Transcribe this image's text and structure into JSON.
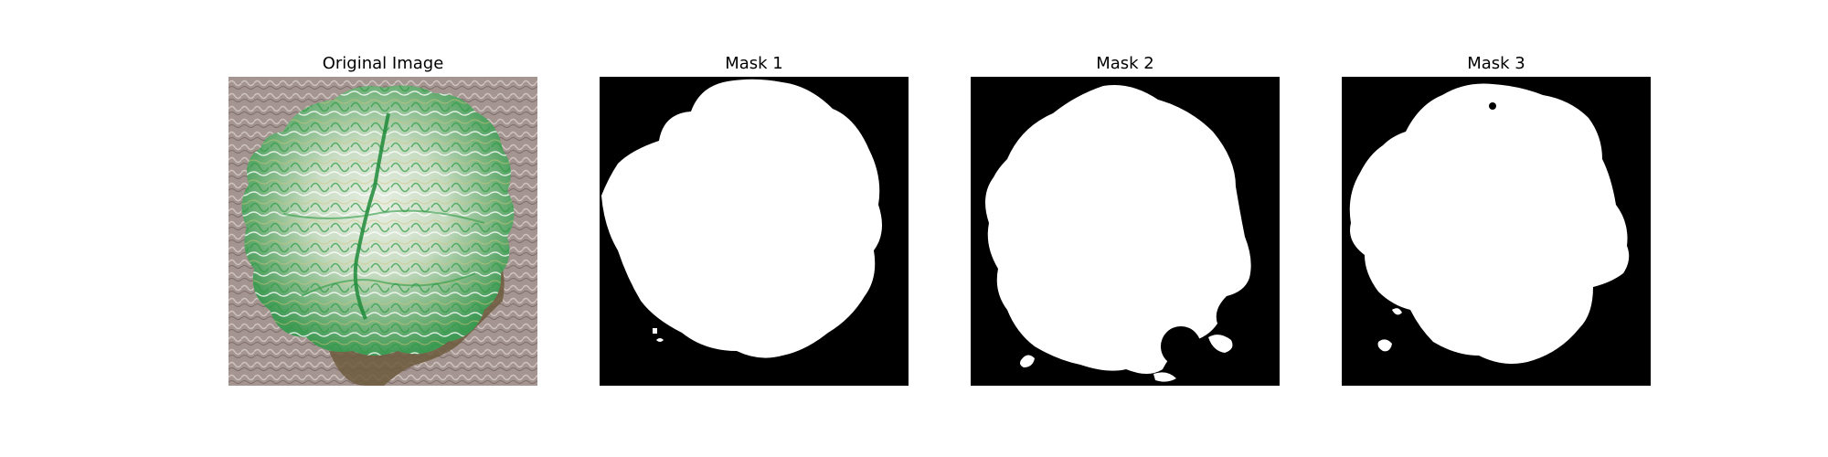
{
  "figure": {
    "panels": [
      {
        "title": "Original Image",
        "image": "photo-of-green-white-lettuce-leaf-on-gray-textured-background"
      },
      {
        "title": "Mask 1",
        "image": "binary-segmentation-mask"
      },
      {
        "title": "Mask 2",
        "image": "binary-segmentation-mask"
      },
      {
        "title": "Mask 3",
        "image": "binary-segmentation-mask"
      }
    ]
  },
  "colors": {
    "background": "#ffffff",
    "mask_foreground": "#ffffff",
    "mask_background": "#000000"
  }
}
